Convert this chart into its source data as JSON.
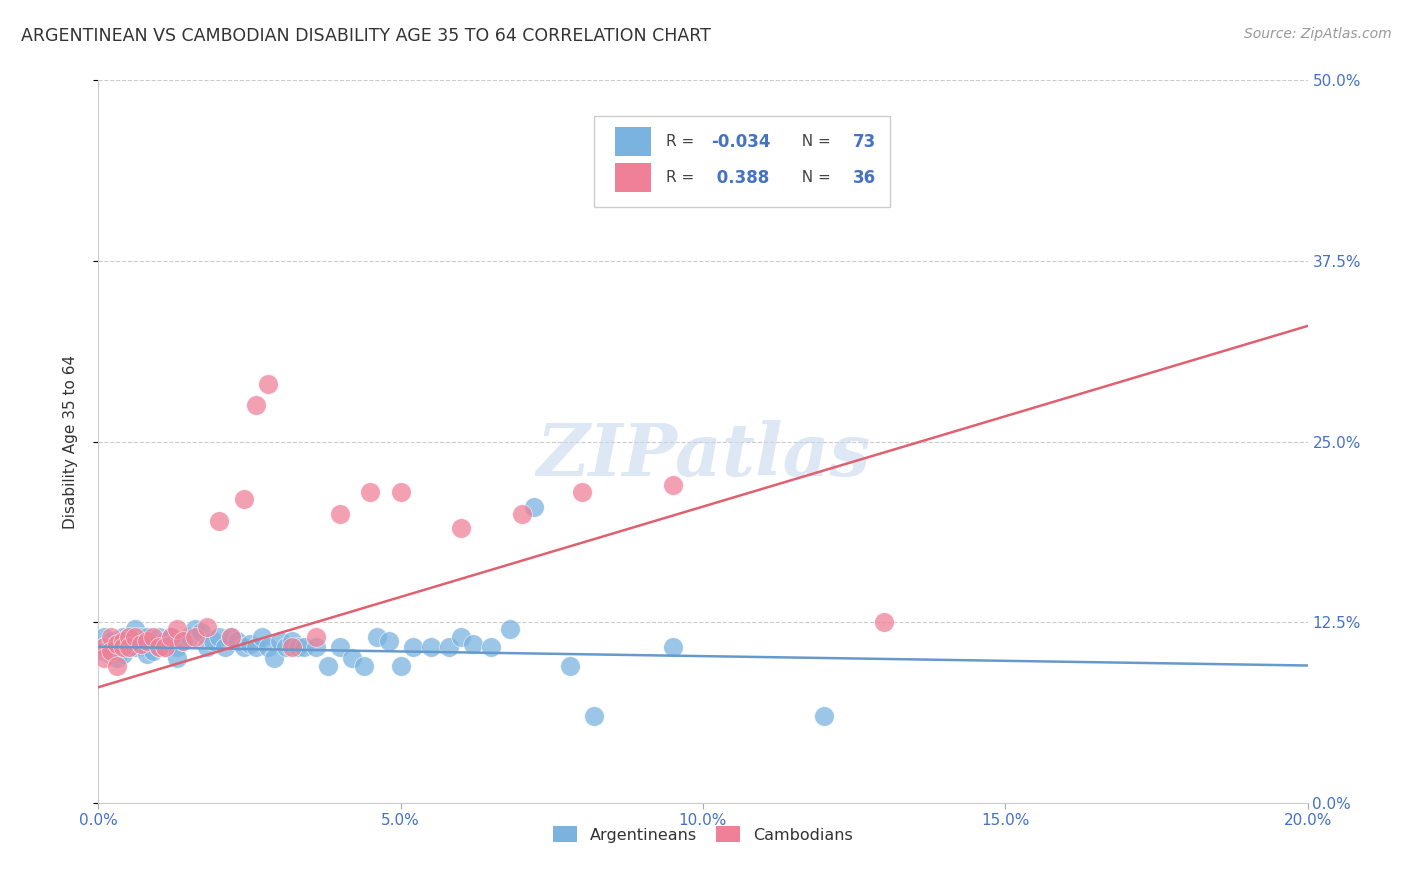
{
  "title": "ARGENTINEAN VS CAMBODIAN DISABILITY AGE 35 TO 64 CORRELATION CHART",
  "source": "Source: ZipAtlas.com",
  "ylabel": "Disability Age 35 to 64",
  "watermark": "ZIPatlas",
  "arg_color": "#7ab3e0",
  "cam_color": "#f08098",
  "arg_line_color": "#6699cc",
  "cam_line_color": "#e06070",
  "background_color": "#ffffff",
  "grid_color": "#cccccc",
  "xlim": [
    0.0,
    0.2
  ],
  "ylim": [
    0.0,
    0.5
  ],
  "xticks": [
    0.0,
    0.05,
    0.1,
    0.15,
    0.2
  ],
  "yticks": [
    0.0,
    0.125,
    0.25,
    0.375,
    0.5
  ],
  "arg_line_x": [
    0.0,
    0.2
  ],
  "arg_line_y": [
    0.108,
    0.095
  ],
  "cam_line_x": [
    0.0,
    0.2
  ],
  "cam_line_y": [
    0.08,
    0.33
  ],
  "legend_R1": "-0.034",
  "legend_N1": "73",
  "legend_R2": "0.388",
  "legend_N2": "36",
  "arg_scatter_x": [
    0.001,
    0.001,
    0.001,
    0.002,
    0.002,
    0.002,
    0.003,
    0.003,
    0.003,
    0.004,
    0.004,
    0.004,
    0.005,
    0.005,
    0.005,
    0.006,
    0.006,
    0.007,
    0.007,
    0.008,
    0.008,
    0.008,
    0.009,
    0.009,
    0.01,
    0.01,
    0.011,
    0.011,
    0.012,
    0.012,
    0.013,
    0.013,
    0.014,
    0.015,
    0.016,
    0.017,
    0.018,
    0.019,
    0.02,
    0.021,
    0.022,
    0.023,
    0.024,
    0.025,
    0.026,
    0.027,
    0.028,
    0.029,
    0.03,
    0.031,
    0.032,
    0.033,
    0.034,
    0.036,
    0.038,
    0.04,
    0.042,
    0.044,
    0.046,
    0.048,
    0.05,
    0.052,
    0.055,
    0.058,
    0.06,
    0.062,
    0.065,
    0.068,
    0.072,
    0.078,
    0.082,
    0.095,
    0.12
  ],
  "arg_scatter_y": [
    0.115,
    0.108,
    0.105,
    0.112,
    0.108,
    0.103,
    0.11,
    0.105,
    0.1,
    0.108,
    0.115,
    0.103,
    0.108,
    0.112,
    0.115,
    0.12,
    0.108,
    0.115,
    0.11,
    0.108,
    0.115,
    0.103,
    0.11,
    0.105,
    0.115,
    0.108,
    0.112,
    0.108,
    0.115,
    0.11,
    0.108,
    0.1,
    0.112,
    0.115,
    0.12,
    0.118,
    0.108,
    0.112,
    0.115,
    0.108,
    0.115,
    0.112,
    0.108,
    0.11,
    0.108,
    0.115,
    0.108,
    0.1,
    0.112,
    0.108,
    0.112,
    0.108,
    0.108,
    0.108,
    0.095,
    0.108,
    0.1,
    0.095,
    0.115,
    0.112,
    0.095,
    0.108,
    0.108,
    0.108,
    0.115,
    0.11,
    0.108,
    0.12,
    0.205,
    0.095,
    0.06,
    0.108,
    0.06
  ],
  "cam_scatter_x": [
    0.001,
    0.001,
    0.002,
    0.002,
    0.003,
    0.003,
    0.004,
    0.004,
    0.005,
    0.005,
    0.006,
    0.007,
    0.008,
    0.009,
    0.01,
    0.011,
    0.012,
    0.013,
    0.014,
    0.016,
    0.018,
    0.02,
    0.022,
    0.024,
    0.026,
    0.028,
    0.032,
    0.036,
    0.04,
    0.045,
    0.05,
    0.06,
    0.07,
    0.08,
    0.095,
    0.13
  ],
  "cam_scatter_y": [
    0.108,
    0.1,
    0.115,
    0.105,
    0.11,
    0.095,
    0.112,
    0.108,
    0.115,
    0.108,
    0.115,
    0.11,
    0.112,
    0.115,
    0.108,
    0.108,
    0.115,
    0.12,
    0.112,
    0.115,
    0.122,
    0.195,
    0.115,
    0.21,
    0.275,
    0.29,
    0.108,
    0.115,
    0.2,
    0.215,
    0.215,
    0.19,
    0.2,
    0.215,
    0.22,
    0.125
  ]
}
